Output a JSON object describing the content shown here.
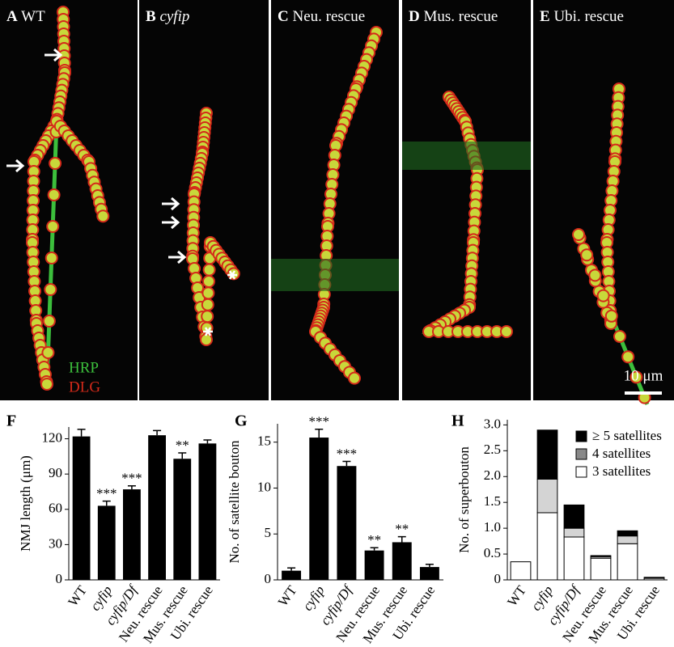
{
  "panels": [
    {
      "letter": "A",
      "label": "WT"
    },
    {
      "letter": "B",
      "label": "cyfip"
    },
    {
      "letter": "C",
      "label": "Neu. rescue"
    },
    {
      "letter": "D",
      "label": "Mus. rescue"
    },
    {
      "letter": "E",
      "label": "Ubi. rescue"
    }
  ],
  "stain_labels": [
    "HRP",
    "DLG"
  ],
  "scale_bar": "10 μm",
  "chart_data": [
    {
      "type": "bar",
      "panel": "F",
      "ylabel": "NMJ length (μm)",
      "categories": [
        "WT",
        "cyfip",
        "cyfip/Df",
        "Neu. rescue",
        "Mus. rescue",
        "Ubi. rescue"
      ],
      "values": [
        122,
        63,
        77,
        123,
        103,
        116
      ],
      "errors": [
        6,
        4,
        3,
        4,
        5,
        3
      ],
      "significance": [
        null,
        "***",
        "***",
        null,
        "**",
        null
      ],
      "color": "#000000",
      "ylim": [
        0,
        130
      ],
      "yticks": [
        0,
        30,
        60,
        90,
        120
      ]
    },
    {
      "type": "bar",
      "panel": "G",
      "ylabel": "No. of satellite bouton",
      "categories": [
        "WT",
        "cyfip",
        "cyfip/Df",
        "Neu. rescue",
        "Mus. rescue",
        "Ubi. rescue"
      ],
      "values": [
        1.0,
        15.5,
        12.4,
        3.2,
        4.1,
        1.4
      ],
      "errors": [
        0.3,
        0.9,
        0.5,
        0.3,
        0.6,
        0.3
      ],
      "significance": [
        null,
        "***",
        "***",
        "**",
        "**",
        null
      ],
      "color": "#000000",
      "ylim": [
        0,
        17
      ],
      "yticks": [
        0,
        5,
        10,
        15
      ]
    },
    {
      "type": "stacked_bar",
      "panel": "H",
      "ylabel": "No. of superbouton",
      "categories": [
        "WT",
        "cyfip",
        "cyfip/Df",
        "Neu. rescue",
        "Mus. rescue",
        "Ubi. rescue"
      ],
      "series": [
        {
          "name": "≥ 5 satellites",
          "color": "#000000",
          "values": [
            0,
            0.95,
            0.45,
            0.02,
            0.1,
            0.02
          ]
        },
        {
          "name": "4 satellites",
          "color": "#d4d4d4",
          "values": [
            0,
            0.65,
            0.17,
            0.03,
            0.15,
            0
          ]
        },
        {
          "name": "3 satellites",
          "color": "#ffffff",
          "values": [
            0.35,
            1.3,
            0.83,
            0.42,
            0.7,
            0.03
          ]
        }
      ],
      "ylim": [
        0,
        3.1
      ],
      "yticks": [
        0,
        0.5,
        {
          "value": 1,
          "label": "1.0"
        },
        1.5,
        {
          "value": 2,
          "label": "2.0"
        },
        2.5,
        {
          "value": 3,
          "label": "3.0"
        }
      ],
      "legend": "upper right"
    }
  ]
}
